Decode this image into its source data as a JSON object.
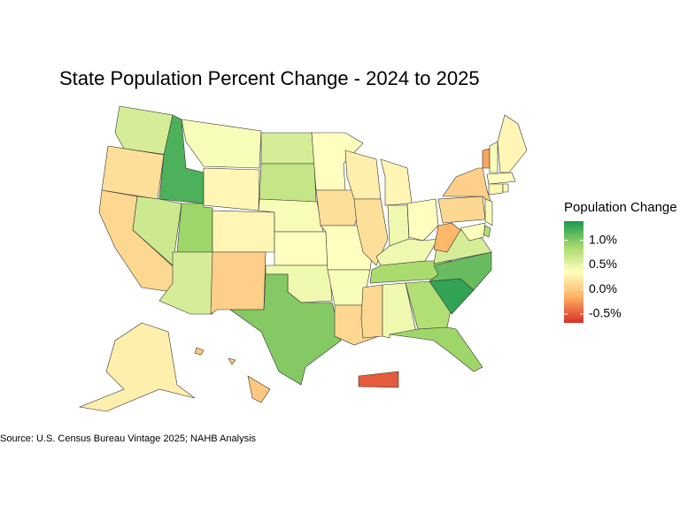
{
  "chart_data": {
    "type": "choropleth",
    "title": "State Population Percent Change - 2024 to 2025",
    "legend_title": "Population Change",
    "caption": "Source: U.S. Census Bureau Vintage 2025; NAHB Analysis",
    "colorlim": [
      -0.68,
      1.39
    ],
    "colorticks": [
      {
        "value": -0.5,
        "label": "-0.5%"
      },
      {
        "value": 0,
        "label": "0.0%"
      },
      {
        "value": 0.5,
        "label": "0.5%"
      },
      {
        "value": 1,
        "label": "1.0%"
      }
    ],
    "colors": [
      "#d73027",
      "#fdae61",
      "#ffffbf",
      "#a6d96a",
      "#1a9850"
    ],
    "values": [
      0.6,
      0.15,
      0.1,
      1.2,
      0.65,
      0.9,
      0.6,
      0.4,
      0.3,
      0.3,
      0.05,
      0.6,
      0.7,
      0.4,
      0.35,
      0.45,
      1.0,
      0.35,
      0.15,
      0.35,
      0.4,
      0.1,
      0.25,
      0.15,
      0.3,
      0.45,
      0.35,
      0.45,
      0.85,
      0.1,
      0.45,
      0.8,
      0.9,
      1.3,
      1.1,
      0.6,
      -0.1,
      0.1,
      0.05,
      -0.2,
      0.4,
      0.3,
      0.35,
      0.3,
      0.4,
      0.4,
      0.8,
      0.35,
      0.25,
      0.0,
      -0.5
    ]
  }
}
